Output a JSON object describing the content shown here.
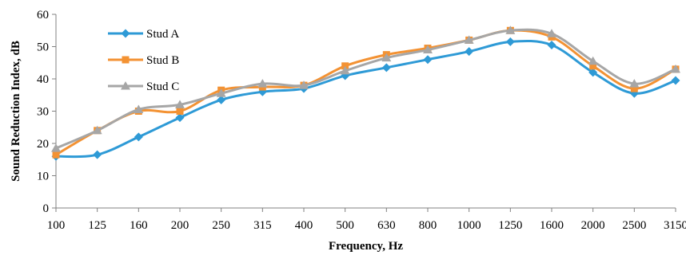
{
  "chart_data": {
    "type": "line",
    "xlabel": "Frequency, Hz",
    "ylabel": "Sound Reduction Index, dB",
    "categories": [
      "100",
      "125",
      "160",
      "200",
      "250",
      "315",
      "400",
      "500",
      "630",
      "800",
      "1000",
      "1250",
      "1600",
      "2000",
      "2500",
      "3150"
    ],
    "ylim": [
      0,
      60
    ],
    "yticks": [
      "0",
      "10",
      "20",
      "30",
      "40",
      "50",
      "60"
    ],
    "grid": false,
    "legend_position": "top-left",
    "series": [
      {
        "name": "Stud A",
        "color": "#2e9ad6",
        "marker": "diamond",
        "values": [
          16,
          16.5,
          22,
          28,
          33.5,
          36,
          37,
          41,
          43.5,
          46,
          48.5,
          51.5,
          50.5,
          42,
          35.5,
          39.5
        ]
      },
      {
        "name": "Stud B",
        "color": "#f39233",
        "marker": "square",
        "values": [
          16.5,
          24,
          30,
          30,
          36.5,
          37.5,
          38,
          44,
          47.5,
          49.5,
          52,
          55,
          53,
          44,
          37,
          43
        ]
      },
      {
        "name": "Stud C",
        "color": "#a6a6a6",
        "marker": "triangle",
        "values": [
          18.5,
          24,
          30.5,
          32,
          35.5,
          38.5,
          38,
          42.5,
          46.5,
          49,
          52,
          55,
          54,
          45.5,
          38.5,
          43
        ]
      }
    ]
  }
}
